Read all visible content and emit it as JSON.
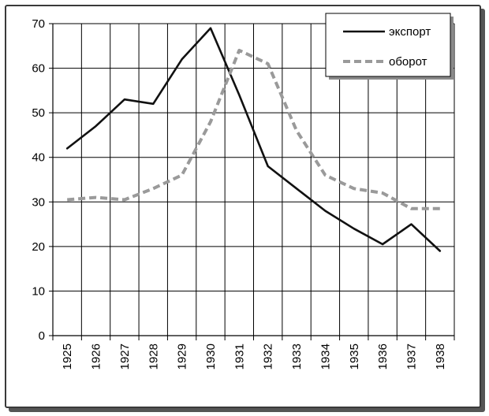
{
  "chart_data": {
    "type": "line",
    "x": [
      "1925",
      "1926",
      "1927",
      "1928",
      "1929",
      "1930",
      "1931",
      "1932",
      "1933",
      "1934",
      "1935",
      "1936",
      "1937",
      "1938"
    ],
    "series": [
      {
        "name": "экспорт",
        "values": [
          42,
          47,
          53,
          52,
          62,
          69,
          54,
          38,
          33,
          28,
          24,
          20.5,
          25,
          19
        ],
        "color": "#111111",
        "style": "solid"
      },
      {
        "name": "оборот",
        "values": [
          30.5,
          31,
          30.5,
          33,
          36,
          48,
          64,
          61,
          46,
          36,
          33,
          32,
          28.5,
          28.5
        ],
        "color": "#9a9a9a",
        "style": "dashed"
      }
    ],
    "ylim": [
      0,
      70
    ],
    "yticks": [
      "0",
      "10",
      "20",
      "30",
      "40",
      "50",
      "60",
      "70"
    ],
    "grid": true,
    "legend": "top-right",
    "title": "",
    "xlabel": "",
    "ylabel": ""
  }
}
